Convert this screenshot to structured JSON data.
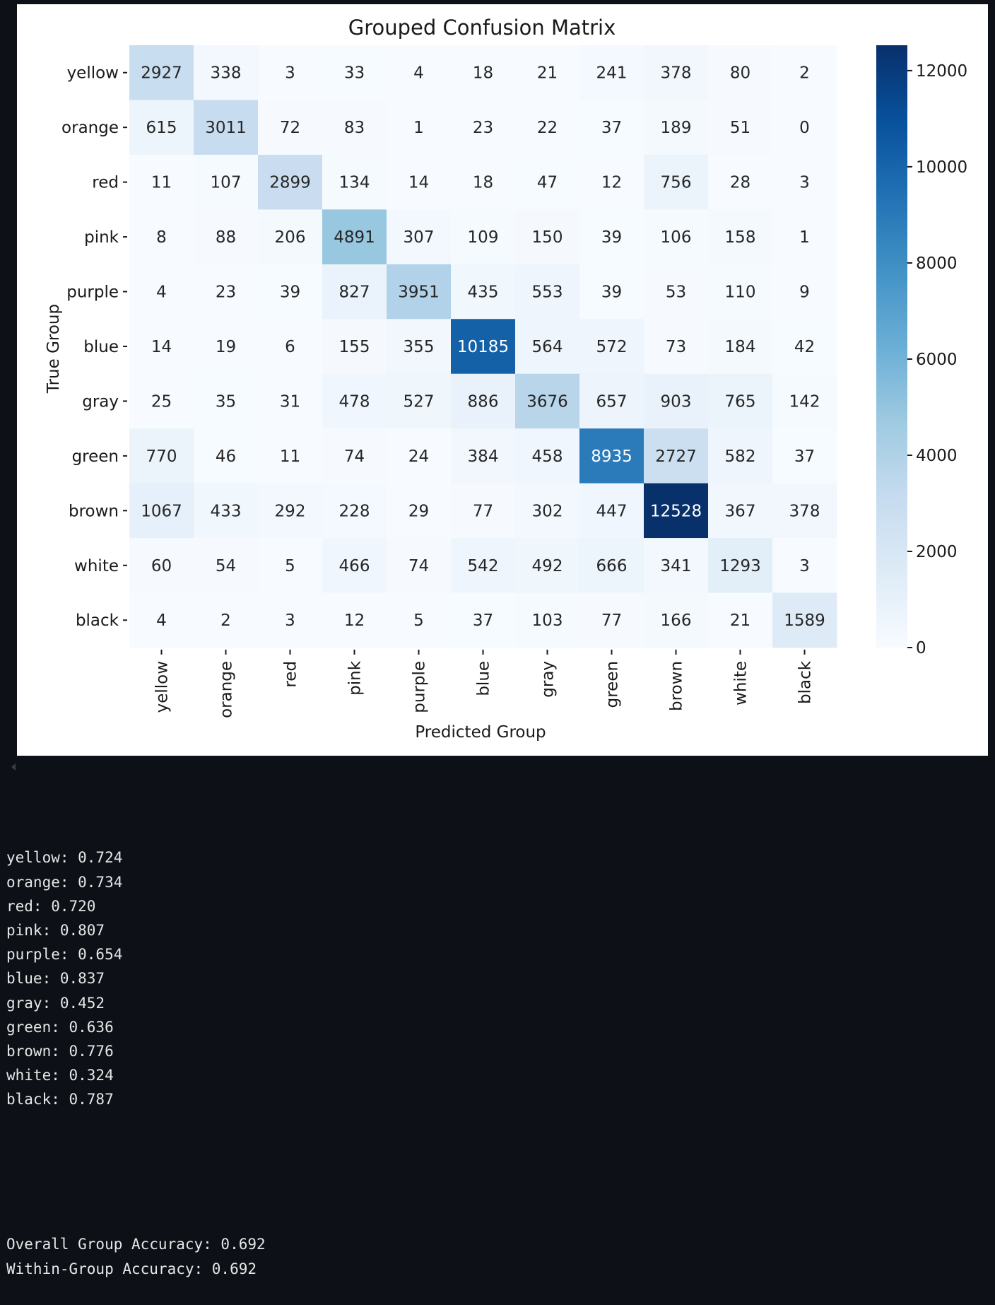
{
  "chart_data": {
    "type": "heatmap",
    "title": "Grouped Confusion Matrix",
    "xlabel": "Predicted Group",
    "ylabel": "True Group",
    "row_labels": [
      "yellow",
      "orange",
      "red",
      "pink",
      "purple",
      "blue",
      "gray",
      "green",
      "brown",
      "white",
      "black"
    ],
    "col_labels": [
      "yellow",
      "orange",
      "red",
      "pink",
      "purple",
      "blue",
      "gray",
      "green",
      "brown",
      "white",
      "black"
    ],
    "values": [
      [
        2927,
        338,
        3,
        33,
        4,
        18,
        21,
        241,
        378,
        80,
        2
      ],
      [
        615,
        3011,
        72,
        83,
        1,
        23,
        22,
        37,
        189,
        51,
        0
      ],
      [
        11,
        107,
        2899,
        134,
        14,
        18,
        47,
        12,
        756,
        28,
        3
      ],
      [
        8,
        88,
        206,
        4891,
        307,
        109,
        150,
        39,
        106,
        158,
        1
      ],
      [
        4,
        23,
        39,
        827,
        3951,
        435,
        553,
        39,
        53,
        110,
        9
      ],
      [
        14,
        19,
        6,
        155,
        355,
        10185,
        564,
        572,
        73,
        184,
        42
      ],
      [
        25,
        35,
        31,
        478,
        527,
        886,
        3676,
        657,
        903,
        765,
        142
      ],
      [
        770,
        46,
        11,
        74,
        24,
        384,
        458,
        8935,
        2727,
        582,
        37
      ],
      [
        1067,
        433,
        292,
        228,
        29,
        77,
        302,
        447,
        12528,
        367,
        378
      ],
      [
        60,
        54,
        5,
        466,
        74,
        542,
        492,
        666,
        341,
        1293,
        3
      ],
      [
        4,
        2,
        3,
        12,
        5,
        37,
        103,
        77,
        166,
        21,
        1589
      ]
    ],
    "colorbar": {
      "min": 0,
      "max": 12528,
      "ticks": [
        0,
        2000,
        4000,
        6000,
        8000,
        10000,
        12000
      ],
      "colormap": "Blues"
    }
  },
  "output": {
    "lines": [
      "yellow: 0.724",
      "orange: 0.734",
      "red: 0.720",
      "pink: 0.807",
      "purple: 0.654",
      "blue: 0.837",
      "gray: 0.452",
      "green: 0.636",
      "brown: 0.776",
      "white: 0.324",
      "black: 0.787"
    ],
    "summary": [
      "Overall Group Accuracy: 0.692",
      "Within-Group Accuracy: 0.692"
    ]
  }
}
